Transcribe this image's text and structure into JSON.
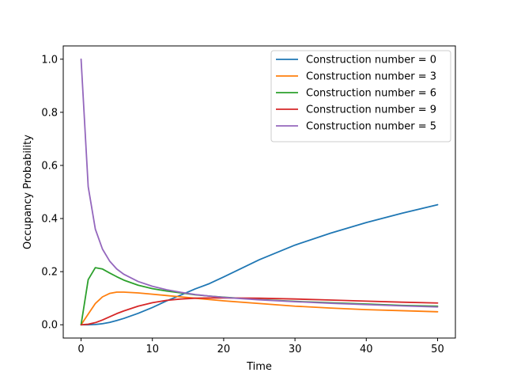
{
  "chart_data": {
    "type": "line",
    "title": "",
    "xlabel": "Time",
    "ylabel": "Occupancy Probability",
    "xlim": [
      -2.5,
      52.5
    ],
    "ylim": [
      -0.05,
      1.05
    ],
    "xticks": [
      0,
      10,
      20,
      30,
      40,
      50
    ],
    "xtick_labels": [
      "0",
      "10",
      "20",
      "30",
      "40",
      "50"
    ],
    "yticks": [
      0.0,
      0.2,
      0.4,
      0.6,
      0.8,
      1.0
    ],
    "ytick_labels": [
      "0.0",
      "0.2",
      "0.4",
      "0.6",
      "0.8",
      "1.0"
    ],
    "grid": false,
    "legend_position": "top-right",
    "x": [
      0,
      1,
      2,
      3,
      4,
      5,
      6,
      8,
      10,
      12,
      14,
      16,
      18,
      20,
      25,
      30,
      35,
      40,
      45,
      50
    ],
    "series": [
      {
        "name": "Construction number = 0",
        "color": "#1f77b4",
        "values": [
          0.0,
          0.0,
          0.001,
          0.004,
          0.009,
          0.016,
          0.024,
          0.043,
          0.065,
          0.09,
          0.112,
          0.135,
          0.155,
          0.18,
          0.245,
          0.3,
          0.345,
          0.385,
          0.42,
          0.452
        ]
      },
      {
        "name": "Construction number = 3",
        "color": "#ff7f0e",
        "values": [
          0.0,
          0.04,
          0.08,
          0.105,
          0.118,
          0.123,
          0.123,
          0.12,
          0.115,
          0.11,
          0.105,
          0.1,
          0.095,
          0.09,
          0.08,
          0.07,
          0.063,
          0.057,
          0.053,
          0.049
        ]
      },
      {
        "name": "Construction number = 6",
        "color": "#2ca02c",
        "values": [
          0.0,
          0.17,
          0.215,
          0.21,
          0.195,
          0.181,
          0.168,
          0.149,
          0.136,
          0.127,
          0.12,
          0.113,
          0.108,
          0.104,
          0.095,
          0.088,
          0.083,
          0.078,
          0.073,
          0.07
        ]
      },
      {
        "name": "Construction number = 9",
        "color": "#d62728",
        "values": [
          0.0,
          0.002,
          0.008,
          0.018,
          0.03,
          0.042,
          0.052,
          0.07,
          0.083,
          0.092,
          0.097,
          0.1,
          0.101,
          0.101,
          0.1,
          0.097,
          0.093,
          0.089,
          0.085,
          0.082
        ]
      },
      {
        "name": "Construction number = 5",
        "color": "#9467bd",
        "values": [
          1.0,
          0.52,
          0.36,
          0.285,
          0.24,
          0.21,
          0.19,
          0.163,
          0.145,
          0.132,
          0.122,
          0.114,
          0.108,
          0.103,
          0.094,
          0.087,
          0.081,
          0.076,
          0.071,
          0.067
        ]
      }
    ]
  }
}
